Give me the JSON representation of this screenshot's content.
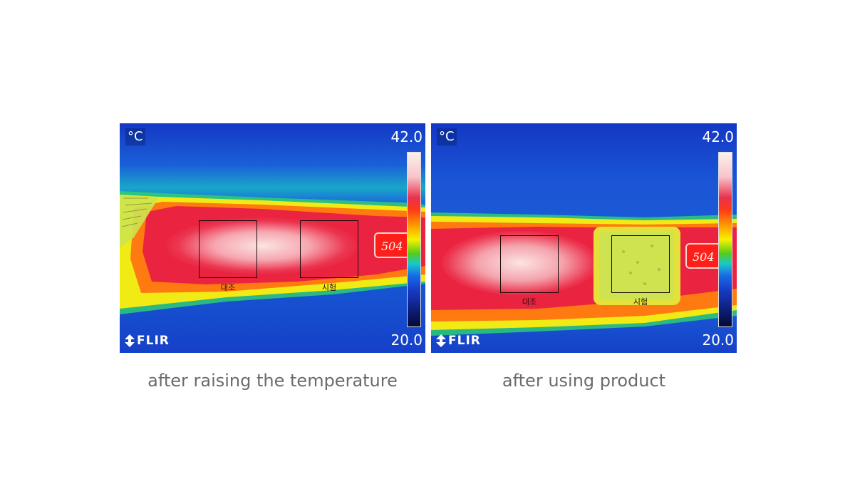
{
  "thermal_images": [
    {
      "unit": "°C",
      "max": "42.0",
      "min": "20.0",
      "brand": "FLIR",
      "tag": "504",
      "roi_labels": [
        "대조",
        "시험"
      ],
      "caption": "after raising the temperature"
    },
    {
      "unit": "°C",
      "max": "42.0",
      "min": "20.0",
      "brand": "FLIR",
      "tag": "504",
      "roi_labels": [
        "대조",
        "시험"
      ],
      "caption": "after using product"
    }
  ],
  "colors": {
    "background": "#ffffff",
    "caption_text": "#6b6b6b",
    "cold_blue": "#1640c8",
    "hot_red": "#e8283a",
    "warm_yellow": "#f2e600"
  },
  "icons": [
    "flir-logo-icon",
    "temperature-scale-bar"
  ]
}
